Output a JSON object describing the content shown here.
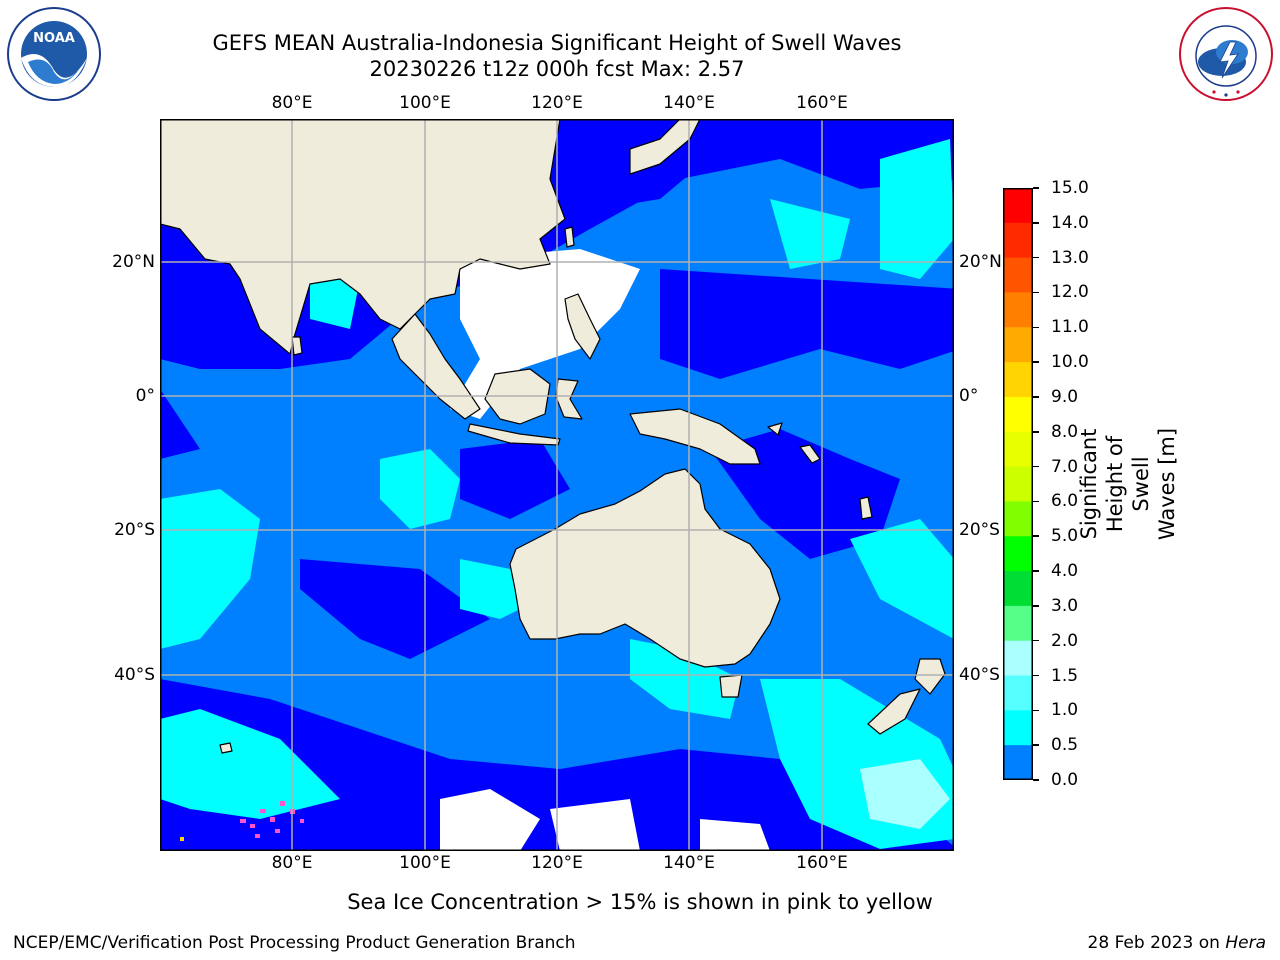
{
  "header": {
    "title_line1": "GEFS MEAN Australia-Indonesia Significant Height of Swell Waves",
    "title_line2": "20230226 t12z 000h fcst   Max: 2.57"
  },
  "logos": {
    "noaa_text": "NOAA",
    "nws_text": "NATIONAL WEATHER SERVICE"
  },
  "map": {
    "lon_ticks": [
      "80°E",
      "100°E",
      "120°E",
      "140°E",
      "160°E"
    ],
    "lat_ticks_left": [
      "20°N",
      "0°",
      "20°S",
      "40°S"
    ],
    "lat_ticks_right": [
      "20°N",
      "0°",
      "20°S",
      "40°S"
    ],
    "colors": {
      "land": "#efecdc",
      "coast": "#000000",
      "grid": "#b0b0b0",
      "c0": "#0000ff",
      "c1": "#0080ff",
      "c2": "#00ffff",
      "c3": "#66ffff",
      "c4": "#aaffff",
      "ice": "#ff55cc"
    }
  },
  "colorbar": {
    "title": "Significant Height of Swell\nWaves [m]",
    "labels": [
      "15.0",
      "14.0",
      "13.0",
      "12.0",
      "11.0",
      "10.0",
      "9.0",
      "8.0",
      "7.0",
      "6.0",
      "5.0",
      "4.0",
      "3.0",
      "2.0",
      "1.5",
      "1.0",
      "0.5",
      "0.0"
    ],
    "colors": [
      "#ff0000",
      "#ff2a00",
      "#ff5500",
      "#ff8000",
      "#ffaa00",
      "#ffd400",
      "#ffff00",
      "#e8ff00",
      "#ccff00",
      "#80ff00",
      "#00ff00",
      "#00dd33",
      "#55ff88",
      "#aaffff",
      "#55ffff",
      "#00ffff",
      "#0080ff",
      "#0000ff"
    ]
  },
  "footer": {
    "note": "Sea Ice Concentration > 15% is shown in pink to yellow",
    "left": "NCEP/EMC/Verification Post Processing Product Generation Branch",
    "right_prefix": "28 Feb 2023 on ",
    "right_host": "Hera"
  }
}
